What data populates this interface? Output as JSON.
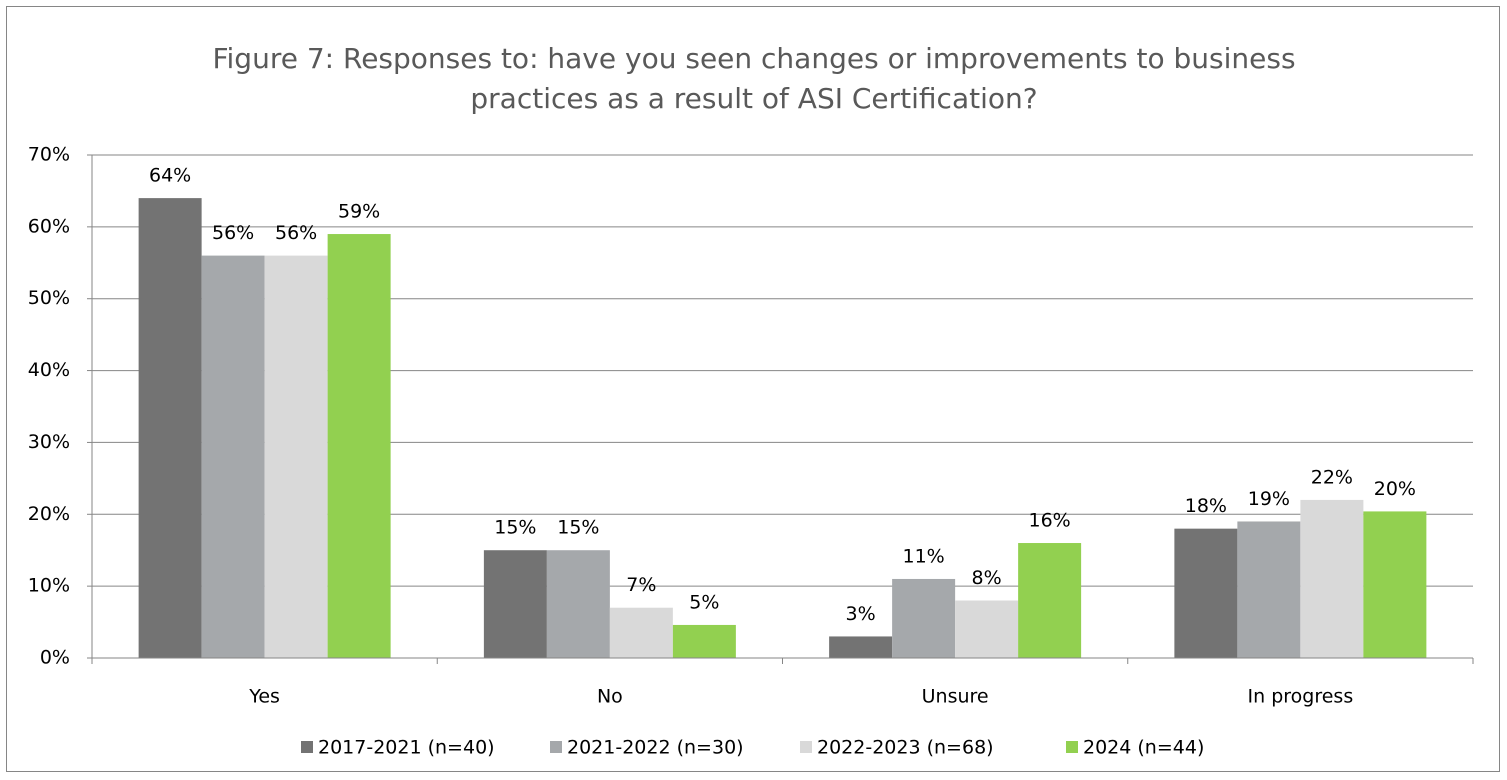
{
  "chart_data": {
    "type": "bar",
    "title": [
      "Figure 7: Responses to: have you seen changes or improvements to business",
      "practices as a result of ASI Certification?"
    ],
    "categories": [
      "Yes",
      "No",
      "Unsure",
      "In progress"
    ],
    "series": [
      {
        "name": "2017-2021 (n=40)",
        "color": "#737373",
        "values": [
          64,
          15,
          3,
          18
        ],
        "value_labels": [
          "64%",
          "15%",
          "3%",
          "18%"
        ]
      },
      {
        "name": "2021-2022 (n=30)",
        "color": "#a5a8ab",
        "values": [
          56,
          15,
          11,
          19
        ],
        "value_labels": [
          "56%",
          "15%",
          "11%",
          "19%"
        ]
      },
      {
        "name": "2022-2023 (n=68)",
        "color": "#d9d9d9",
        "values": [
          56,
          7,
          8,
          22
        ],
        "value_labels": [
          "56%",
          "7%",
          "8%",
          "22%"
        ]
      },
      {
        "name": "2024 (n=44)",
        "color": "#92d050",
        "values": [
          59,
          4.6,
          16,
          20.4
        ],
        "value_labels": [
          "59%",
          "5%",
          "16%",
          "20%"
        ]
      }
    ],
    "ylim": [
      0,
      70
    ],
    "yticks": [
      {
        "value": 0,
        "label": "0%"
      },
      {
        "value": 10,
        "label": "10%"
      },
      {
        "value": 20,
        "label": "20%"
      },
      {
        "value": 30,
        "label": "30%"
      },
      {
        "value": 40,
        "label": "40%"
      },
      {
        "value": 50,
        "label": "50%"
      },
      {
        "value": 60,
        "label": "60%"
      },
      {
        "value": 70,
        "label": "70%"
      }
    ],
    "grid": true,
    "legend": "bottom"
  }
}
